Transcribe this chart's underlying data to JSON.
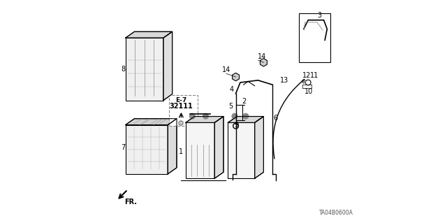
{
  "bg_color": "#ffffff",
  "line_color": "#000000",
  "gray_fill": "#cccccc",
  "light_gray": "#e8e8e8",
  "mid_gray": "#aaaaaa",
  "dark_gray": "#555555",
  "ref_label": "TA04B0600A",
  "fr_label": "FR.",
  "e7_line1": "E-7",
  "e7_line2": "32111"
}
